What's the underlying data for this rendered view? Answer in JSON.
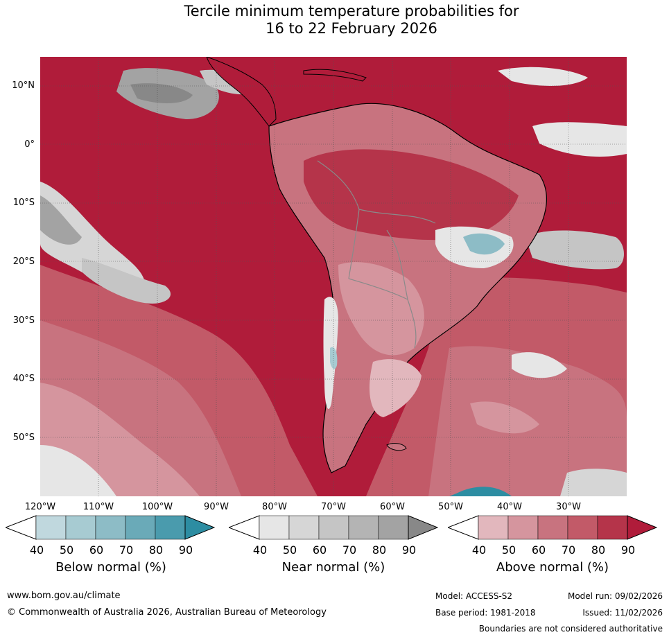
{
  "title_line1": "Tercile minimum temperature probabilities for",
  "title_line2": "16 to 22 February 2026",
  "map": {
    "lat_labels": [
      "10°N",
      "0°",
      "10°S",
      "20°S",
      "30°S",
      "40°S",
      "50°S"
    ],
    "lon_labels": [
      "120°W",
      "110°W",
      "100°W",
      "90°W",
      "80°W",
      "70°W",
      "60°W",
      "50°W",
      "40°W",
      "30°W"
    ],
    "colors": {
      "above_70": "#c75a6b",
      "above_80": "#b5344a",
      "above_90": "#b01c3a",
      "near_50": "#d5d5d5",
      "near_70": "#b5b5b5",
      "below_60": "#8fbfc8",
      "below_80": "#4fa3b3",
      "land_outline": "#000000",
      "border": "#8a8a8a"
    }
  },
  "legends": [
    {
      "title": "Below normal (%)",
      "ticks": [
        "40",
        "50",
        "60",
        "70",
        "80",
        "90"
      ],
      "colors": [
        "#ffffff",
        "#c0d8de",
        "#a7cbd2",
        "#8dbcc6",
        "#6aaab8",
        "#4a9bad",
        "#2d8da2"
      ]
    },
    {
      "title": "Near normal (%)",
      "ticks": [
        "40",
        "50",
        "60",
        "70",
        "80",
        "90"
      ],
      "colors": [
        "#ffffff",
        "#e6e6e6",
        "#d6d6d6",
        "#c5c5c5",
        "#b4b4b4",
        "#a3a3a3",
        "#888888"
      ]
    },
    {
      "title": "Above normal (%)",
      "ticks": [
        "40",
        "50",
        "60",
        "70",
        "80",
        "90"
      ],
      "colors": [
        "#ffffff",
        "#e2b7bd",
        "#d5959e",
        "#c8737f",
        "#c25a68",
        "#b5344a",
        "#b01c3a"
      ]
    }
  ],
  "footer": {
    "website": "www.bom.gov.au/climate",
    "copyright": "© Commonwealth of Australia 2026, Australian Bureau of Meteorology",
    "model": "Model: ACCESS-S2",
    "base_period": "Base period: 1981-2018",
    "model_run": "Model run: 09/02/2026",
    "issued": "Issued: 11/02/2026",
    "disclaimer": "Boundaries are not considered authoritative"
  }
}
